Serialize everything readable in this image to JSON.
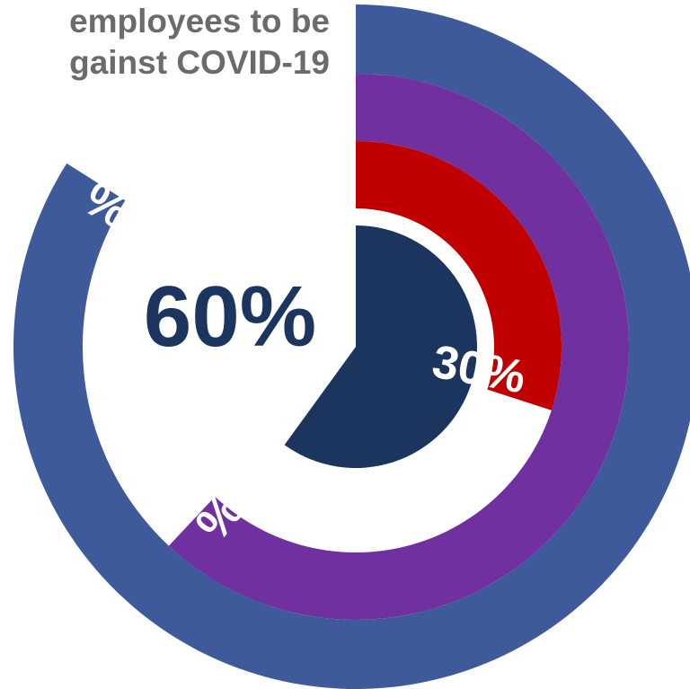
{
  "title_lines": [
    "employees to be",
    "gainst COVID-19"
  ],
  "center_label": "60%",
  "colors": {
    "title": "#6b6b6b",
    "center_text": "#1c355e"
  },
  "chart_data": {
    "type": "pie",
    "title": "",
    "series": [
      {
        "value": 84,
        "label": "84%",
        "color": "#3f5a9b",
        "ring": "outer"
      },
      {
        "value": 62,
        "label": "62%",
        "color": "#7030a0",
        "ring": "middle"
      },
      {
        "value": 30,
        "label": "30%",
        "color": "#c00000",
        "ring": "inner"
      },
      {
        "value": 60,
        "label": "60%",
        "color": "#1c355e",
        "ring": "core"
      }
    ]
  }
}
